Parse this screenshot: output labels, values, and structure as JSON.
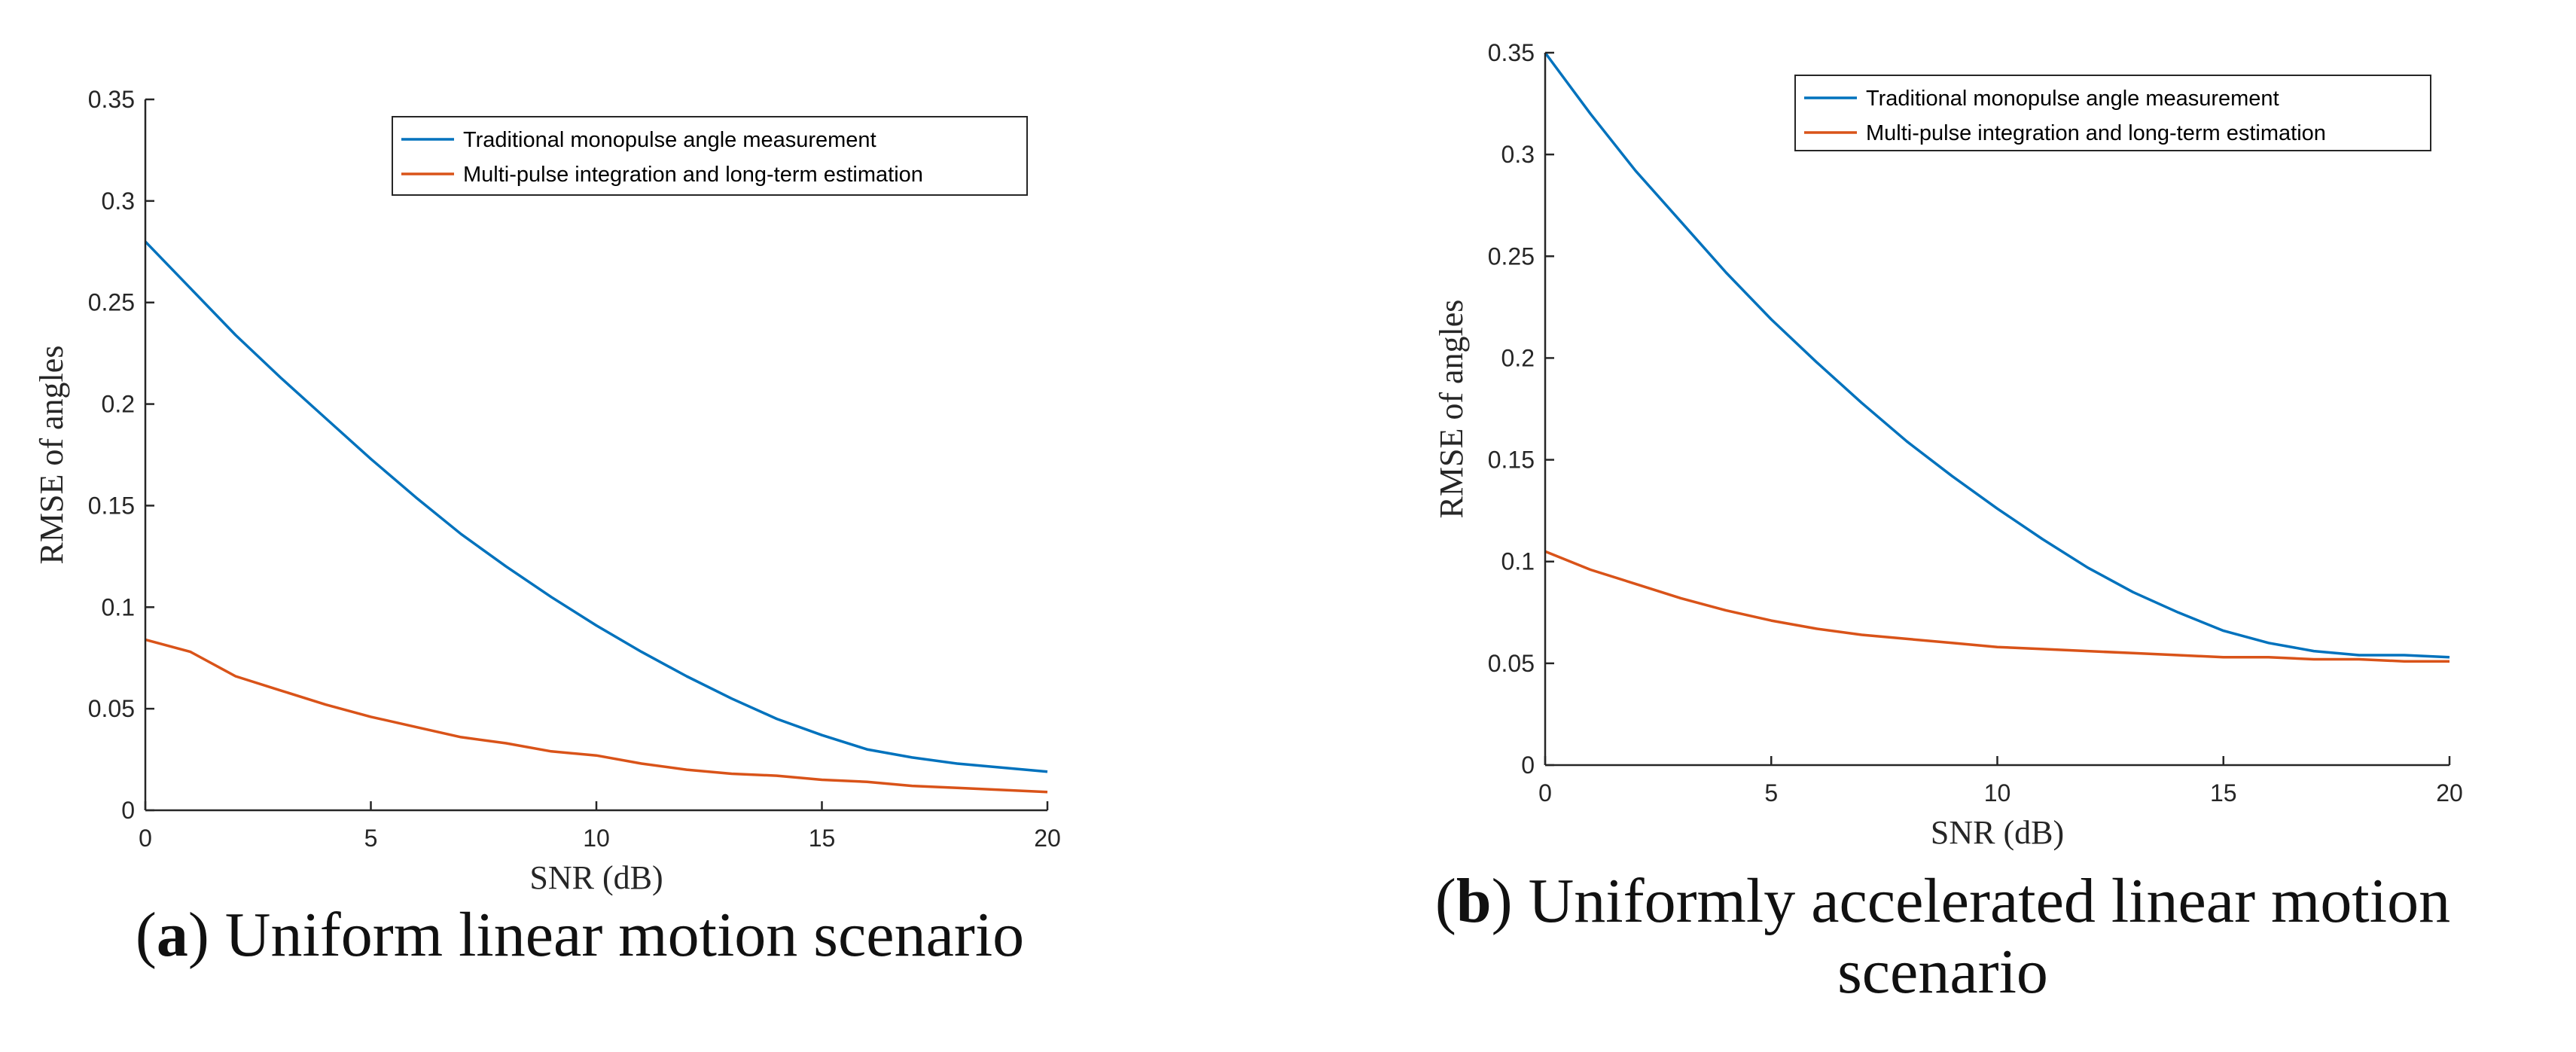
{
  "captions": [
    {
      "letter": "a",
      "text": "Uniform linear motion scenario"
    },
    {
      "letter": "b",
      "text": "Uniformly accelerated linear motion scenario"
    }
  ],
  "colors": {
    "traditional": "#0072BD",
    "multipulse": "#D95319",
    "axis": "#262626"
  },
  "chart_data": [
    {
      "type": "line",
      "title": "",
      "xlabel": "SNR (dB)",
      "ylabel": "RMSE of angles",
      "xlim": [
        0,
        20
      ],
      "ylim": [
        0,
        0.35
      ],
      "xticks": [
        0,
        5,
        10,
        15,
        20
      ],
      "yticks": [
        0,
        0.05,
        0.1,
        0.15,
        0.2,
        0.25,
        0.3,
        0.35
      ],
      "ytick_labels": [
        "0",
        "0.05",
        "0.1",
        "0.15",
        "0.2",
        "0.25",
        "0.3",
        "0.35"
      ],
      "grid": false,
      "legend": "top-right",
      "x": [
        0,
        1,
        2,
        3,
        4,
        5,
        6,
        7,
        8,
        9,
        10,
        11,
        12,
        13,
        14,
        15,
        16,
        17,
        18,
        19,
        20
      ],
      "series": [
        {
          "name": "Traditional monopulse angle measurement",
          "values": [
            0.28,
            0.257,
            0.234,
            0.213,
            0.193,
            0.173,
            0.154,
            0.136,
            0.12,
            0.105,
            0.091,
            0.078,
            0.066,
            0.055,
            0.045,
            0.037,
            0.03,
            0.026,
            0.023,
            0.021,
            0.019
          ]
        },
        {
          "name": "Multi-pulse integration and long-term estimation",
          "values": [
            0.084,
            0.078,
            0.066,
            0.059,
            0.052,
            0.046,
            0.041,
            0.036,
            0.033,
            0.029,
            0.027,
            0.023,
            0.02,
            0.018,
            0.017,
            0.015,
            0.014,
            0.012,
            0.011,
            0.01,
            0.009
          ]
        }
      ]
    },
    {
      "type": "line",
      "title": "",
      "xlabel": "SNR (dB)",
      "ylabel": "RMSE of angles",
      "xlim": [
        0,
        20
      ],
      "ylim": [
        0,
        0.35
      ],
      "xticks": [
        0,
        5,
        10,
        15,
        20
      ],
      "yticks": [
        0,
        0.05,
        0.1,
        0.15,
        0.2,
        0.25,
        0.3,
        0.35
      ],
      "ytick_labels": [
        "0",
        "0.05",
        "0.1",
        "0.15",
        "0.2",
        "0.25",
        "0.3",
        "0.35"
      ],
      "grid": false,
      "legend": "top-right",
      "x": [
        0,
        1,
        2,
        3,
        4,
        5,
        6,
        7,
        8,
        9,
        10,
        11,
        12,
        13,
        14,
        15,
        16,
        17,
        18,
        19,
        20
      ],
      "series": [
        {
          "name": "Traditional monopulse angle measurement",
          "values": [
            0.35,
            0.32,
            0.292,
            0.267,
            0.242,
            0.219,
            0.198,
            0.178,
            0.159,
            0.142,
            0.126,
            0.111,
            0.097,
            0.085,
            0.075,
            0.066,
            0.06,
            0.056,
            0.054,
            0.054,
            0.053
          ]
        },
        {
          "name": "Multi-pulse integration and long-term estimation",
          "values": [
            0.105,
            0.096,
            0.089,
            0.082,
            0.076,
            0.071,
            0.067,
            0.064,
            0.062,
            0.06,
            0.058,
            0.057,
            0.056,
            0.055,
            0.054,
            0.053,
            0.053,
            0.052,
            0.052,
            0.051,
            0.051
          ]
        }
      ]
    }
  ]
}
